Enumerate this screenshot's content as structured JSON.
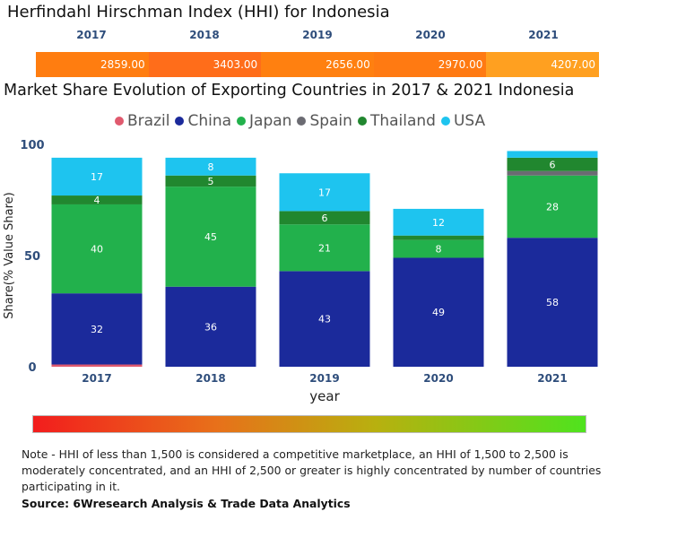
{
  "hhi": {
    "title": "Herfindahl Hirschman Index (HHI) for Indonesia",
    "items": [
      {
        "year": "2017",
        "value": "2859.00",
        "color": "#ff7d10"
      },
      {
        "year": "2018",
        "value": "3403.00",
        "color": "#ff6d1a"
      },
      {
        "year": "2019",
        "value": "2656.00",
        "color": "#ff8010"
      },
      {
        "year": "2020",
        "value": "2970.00",
        "color": "#ff7a12"
      },
      {
        "year": "2021",
        "value": "4207.00",
        "color": "#ffa020"
      }
    ]
  },
  "chart_data": {
    "type": "bar",
    "stacked": true,
    "title": "Market Share Evolution of Exporting Countries in 2017 & 2021 Indonesia",
    "xlabel": "year",
    "ylabel": "Share(% Value Share)",
    "ylim": [
      0,
      100
    ],
    "yticks": [
      0,
      50,
      100
    ],
    "categories": [
      "2017",
      "2018",
      "2019",
      "2020",
      "2021"
    ],
    "legend_position": "top",
    "series": [
      {
        "name": "Brazil",
        "color": "#e05a6e",
        "values": [
          1,
          0,
          0,
          0,
          0
        ],
        "labels": [
          "",
          "",
          "",
          "",
          ""
        ]
      },
      {
        "name": "China",
        "color": "#1b2a9b",
        "values": [
          32,
          36,
          43,
          49,
          58
        ],
        "labels": [
          "32",
          "36",
          "43",
          "49",
          "58"
        ]
      },
      {
        "name": "Japan",
        "color": "#22b14c",
        "values": [
          40,
          45,
          21,
          8,
          28
        ],
        "labels": [
          "40",
          "45",
          "21",
          "8",
          "28"
        ]
      },
      {
        "name": "Spain",
        "color": "#6b6b72",
        "values": [
          0,
          0,
          0,
          0,
          2
        ],
        "labels": [
          "",
          "",
          "",
          "",
          ""
        ]
      },
      {
        "name": "Thailand",
        "color": "#21872f",
        "values": [
          4,
          5,
          6,
          2,
          6
        ],
        "labels": [
          "4",
          "5",
          "6",
          "",
          "6"
        ]
      },
      {
        "name": "USA",
        "color": "#1ec4ef",
        "values": [
          17,
          8,
          17,
          12,
          3
        ],
        "labels": [
          "17",
          "8",
          "17",
          "12",
          ""
        ]
      }
    ]
  },
  "footer": {
    "note": "Note - HHI of less than 1,500 is considered a competitive marketplace, an HHI of 1,500 to 2,500 is moderately concentrated, and an HHI of 2,500 or greater is highly concentrated by number of countries participating in it.",
    "source": "Source: 6Wresearch Analysis & Trade Data Analytics"
  }
}
